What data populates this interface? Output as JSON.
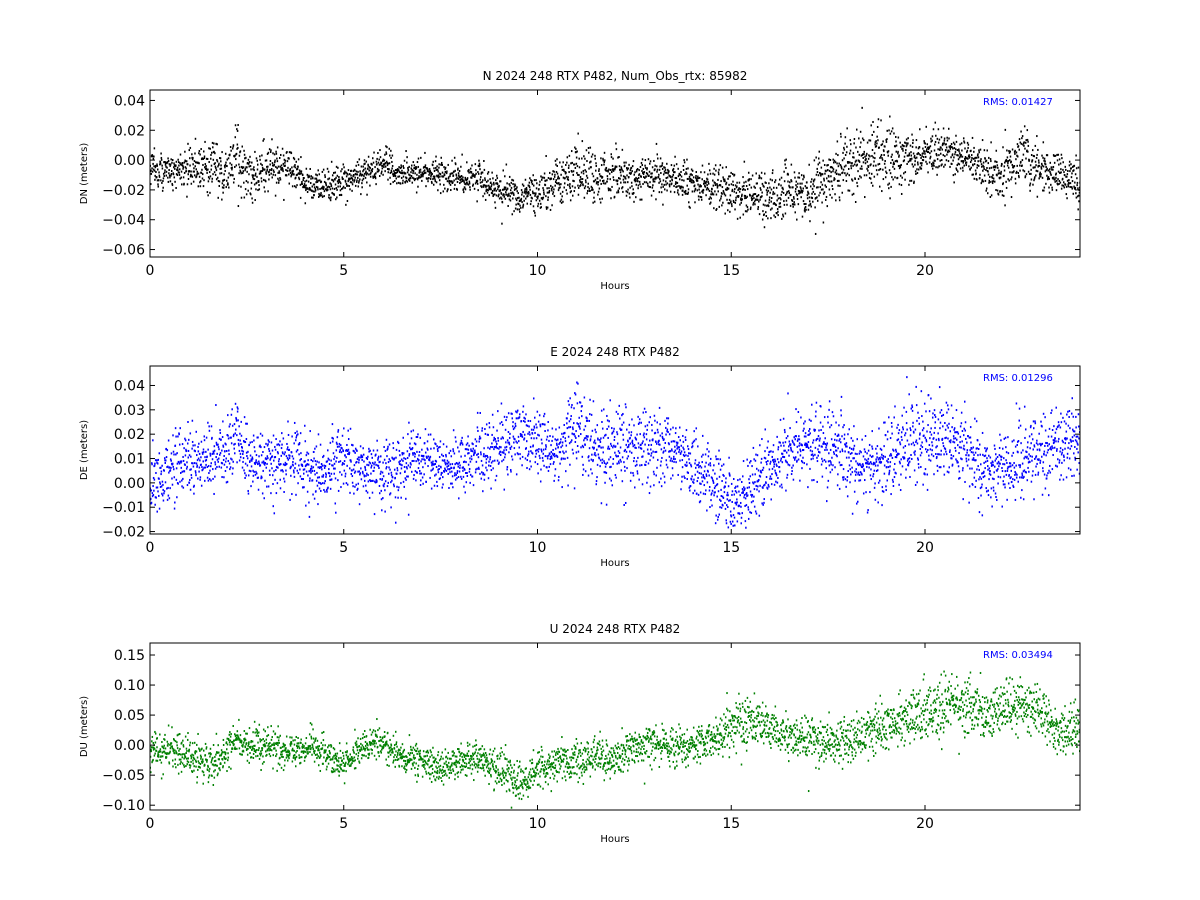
{
  "chart_data": [
    {
      "type": "scatter",
      "title": "N 2024 248 RTX  P482, Num_Obs_rtx: 85982",
      "xlabel": "Hours",
      "ylabel": "DN (meters)",
      "xlim": [
        0,
        24
      ],
      "ylim": [
        -0.065,
        0.047
      ],
      "xticks": [
        0,
        5,
        10,
        15,
        20
      ],
      "xtick_labels": [
        "0",
        "5",
        "10",
        "15",
        "20"
      ],
      "yticks": [
        -0.06,
        -0.04,
        -0.02,
        0.0,
        0.02,
        0.04
      ],
      "ytick_labels": [
        "−0.06",
        "−0.04",
        "−0.02",
        "0.00",
        "0.02",
        "0.04"
      ],
      "annotation": "RMS:  0.01427",
      "grid": false,
      "series": [
        {
          "color": "#000000",
          "x": [
            0,
            0.5,
            1,
            1.5,
            2,
            2.2,
            2.5,
            3,
            3.5,
            4,
            4.5,
            5,
            5.5,
            6,
            6.5,
            7,
            7.5,
            8,
            8.5,
            9,
            9.5,
            10,
            10.5,
            11,
            11.5,
            12,
            12.5,
            13,
            13.5,
            14,
            14.5,
            15,
            15.5,
            16,
            16.5,
            17,
            17.5,
            18,
            18.5,
            19,
            19.5,
            20,
            20.5,
            21,
            21.5,
            22,
            22.5,
            23,
            23.5,
            24
          ],
          "y": [
            -0.005,
            -0.008,
            -0.006,
            -0.002,
            -0.01,
            0.005,
            -0.012,
            -0.005,
            -0.004,
            -0.015,
            -0.018,
            -0.012,
            -0.01,
            -0.003,
            -0.01,
            -0.008,
            -0.01,
            -0.012,
            -0.013,
            -0.02,
            -0.024,
            -0.022,
            -0.015,
            -0.008,
            -0.012,
            -0.01,
            -0.014,
            -0.01,
            -0.012,
            -0.015,
            -0.018,
            -0.022,
            -0.024,
            -0.025,
            -0.02,
            -0.022,
            -0.01,
            -0.002,
            0.002,
            0.004,
            0.0,
            0.005,
            0.004,
            0.002,
            -0.008,
            -0.01,
            0.002,
            -0.005,
            -0.01,
            -0.018
          ],
          "spread": [
            0.012,
            0.01,
            0.012,
            0.018,
            0.02,
            0.018,
            0.014,
            0.012,
            0.011,
            0.01,
            0.01,
            0.01,
            0.01,
            0.01,
            0.009,
            0.009,
            0.009,
            0.01,
            0.01,
            0.011,
            0.011,
            0.011,
            0.015,
            0.016,
            0.016,
            0.013,
            0.012,
            0.012,
            0.012,
            0.013,
            0.013,
            0.014,
            0.016,
            0.016,
            0.015,
            0.014,
            0.016,
            0.018,
            0.02,
            0.02,
            0.016,
            0.014,
            0.014,
            0.014,
            0.015,
            0.015,
            0.018,
            0.016,
            0.014,
            0.013
          ]
        }
      ]
    },
    {
      "type": "scatter",
      "title": "E 2024 248 RTX  P482",
      "xlabel": "Hours",
      "ylabel": "DE (meters)",
      "xlim": [
        0,
        24
      ],
      "ylim": [
        -0.021,
        0.048
      ],
      "xticks": [
        0,
        5,
        10,
        15,
        20
      ],
      "xtick_labels": [
        "0",
        "5",
        "10",
        "15",
        "20"
      ],
      "yticks": [
        -0.02,
        -0.01,
        0.0,
        0.01,
        0.02,
        0.03,
        0.04
      ],
      "ytick_labels": [
        "−0.02",
        "−0.01",
        "0.00",
        "0.01",
        "0.02",
        "0.03",
        "0.04"
      ],
      "annotation": "RMS:  0.01296",
      "grid": false,
      "series": [
        {
          "color": "#0000ff",
          "x": [
            0,
            0.5,
            1,
            1.5,
            2,
            2.2,
            2.5,
            3,
            3.5,
            4,
            4.5,
            5,
            5.5,
            6,
            6.5,
            7,
            7.5,
            8,
            8.5,
            9,
            9.5,
            10,
            10.5,
            11,
            11.5,
            12,
            12.5,
            13,
            13.5,
            14,
            14.5,
            15,
            15.5,
            16,
            16.5,
            17,
            17.5,
            18,
            18.5,
            19,
            19.5,
            20,
            20.5,
            21,
            21.5,
            22,
            22.5,
            23,
            23.5,
            24
          ],
          "y": [
            0.0,
            0.006,
            0.008,
            0.01,
            0.012,
            0.022,
            0.01,
            0.008,
            0.01,
            0.007,
            0.004,
            0.01,
            0.006,
            0.004,
            0.008,
            0.009,
            0.008,
            0.008,
            0.01,
            0.015,
            0.02,
            0.017,
            0.01,
            0.024,
            0.016,
            0.014,
            0.013,
            0.015,
            0.014,
            0.008,
            0.0,
            -0.008,
            -0.002,
            0.006,
            0.012,
            0.016,
            0.015,
            0.012,
            0.005,
            0.01,
            0.018,
            0.02,
            0.017,
            0.014,
            0.004,
            0.006,
            0.012,
            0.014,
            0.017,
            0.016
          ],
          "spread": [
            0.013,
            0.012,
            0.012,
            0.012,
            0.013,
            0.016,
            0.012,
            0.012,
            0.012,
            0.012,
            0.012,
            0.013,
            0.012,
            0.012,
            0.012,
            0.012,
            0.012,
            0.012,
            0.012,
            0.013,
            0.013,
            0.013,
            0.013,
            0.016,
            0.016,
            0.015,
            0.014,
            0.014,
            0.013,
            0.013,
            0.013,
            0.013,
            0.013,
            0.013,
            0.014,
            0.015,
            0.015,
            0.015,
            0.014,
            0.014,
            0.016,
            0.016,
            0.015,
            0.014,
            0.013,
            0.013,
            0.014,
            0.014,
            0.013,
            0.013
          ]
        }
      ]
    },
    {
      "type": "scatter",
      "title": "U 2024 248 RTX  P482",
      "xlabel": "Hours",
      "ylabel": "DU (meters)",
      "xlim": [
        0,
        24
      ],
      "ylim": [
        -0.108,
        0.17
      ],
      "xticks": [
        0,
        5,
        10,
        15,
        20
      ],
      "xtick_labels": [
        "0",
        "5",
        "10",
        "15",
        "20"
      ],
      "yticks": [
        -0.1,
        -0.05,
        0.0,
        0.05,
        0.1,
        0.15
      ],
      "ytick_labels": [
        "−0.10",
        "−0.05",
        "0.00",
        "0.05",
        "0.10",
        "0.15"
      ],
      "annotation": "RMS:  0.03494",
      "grid": false,
      "series": [
        {
          "color": "#008000",
          "x": [
            0,
            0.5,
            1,
            1.5,
            2,
            2.2,
            2.5,
            3,
            3.5,
            4,
            4.5,
            5,
            5.5,
            6,
            6.5,
            7,
            7.5,
            8,
            8.5,
            9,
            9.5,
            10,
            10.5,
            11,
            11.5,
            12,
            12.5,
            13,
            13.5,
            14,
            14.5,
            15,
            15.5,
            16,
            16.5,
            17,
            17.5,
            18,
            18.5,
            19,
            19.5,
            20,
            20.5,
            21,
            21.5,
            22,
            22.5,
            23,
            23.5,
            24
          ],
          "y": [
            -0.005,
            -0.01,
            -0.02,
            -0.03,
            -0.01,
            0.005,
            0.0,
            0.0,
            -0.01,
            -0.005,
            -0.01,
            -0.03,
            0.0,
            0.005,
            -0.02,
            -0.03,
            -0.035,
            -0.03,
            -0.02,
            -0.04,
            -0.065,
            -0.04,
            -0.03,
            -0.025,
            -0.02,
            -0.03,
            0.0,
            0.005,
            -0.005,
            0.0,
            0.01,
            0.03,
            0.04,
            0.03,
            0.02,
            0.01,
            0.005,
            0.0,
            0.02,
            0.03,
            0.04,
            0.055,
            0.06,
            0.075,
            0.05,
            0.06,
            0.075,
            0.05,
            0.02,
            0.025
          ],
          "spread": [
            0.025,
            0.025,
            0.03,
            0.035,
            0.03,
            0.03,
            0.025,
            0.025,
            0.025,
            0.025,
            0.025,
            0.025,
            0.025,
            0.025,
            0.025,
            0.025,
            0.025,
            0.025,
            0.025,
            0.03,
            0.03,
            0.03,
            0.03,
            0.03,
            0.03,
            0.03,
            0.03,
            0.03,
            0.03,
            0.03,
            0.03,
            0.035,
            0.035,
            0.035,
            0.035,
            0.035,
            0.035,
            0.035,
            0.035,
            0.035,
            0.04,
            0.045,
            0.045,
            0.045,
            0.04,
            0.04,
            0.045,
            0.04,
            0.035,
            0.035
          ]
        }
      ]
    }
  ]
}
